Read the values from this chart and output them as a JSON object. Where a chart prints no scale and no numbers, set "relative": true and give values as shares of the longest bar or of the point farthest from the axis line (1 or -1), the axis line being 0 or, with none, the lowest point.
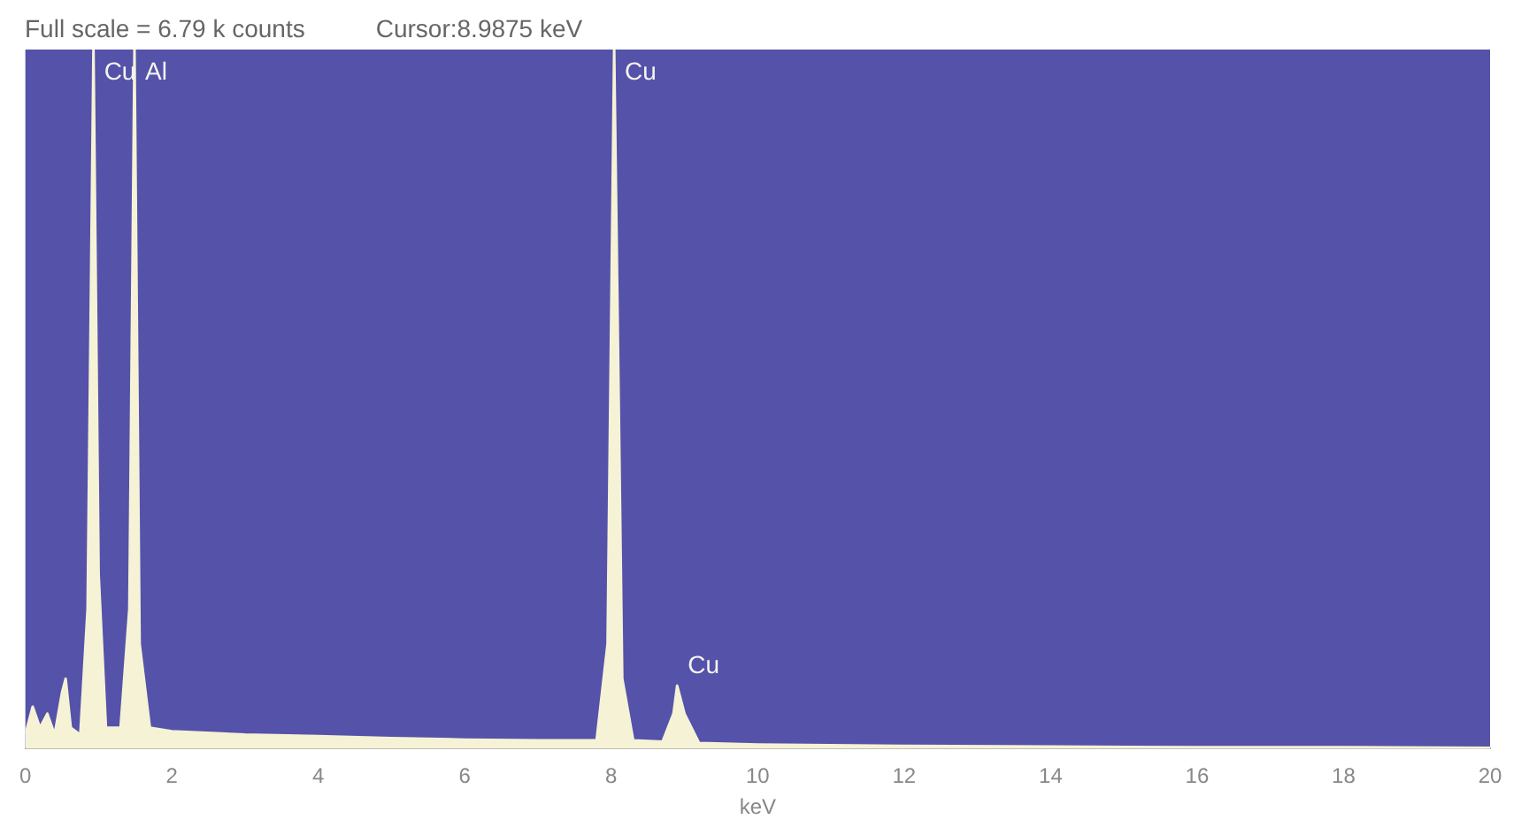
{
  "chart_data": {
    "type": "area",
    "title": "Full scale =  6.79 k counts",
    "subtitle": "Cursor:8.9875 keV",
    "xlabel": "keV",
    "relative": true,
    "grid": false,
    "legend": false,
    "marker": "none",
    "x": [
      0,
      0.1,
      0.2,
      0.3,
      0.4,
      0.5,
      0.55,
      0.62,
      0.75,
      0.85,
      0.93,
      1.0,
      1.1,
      1.3,
      1.42,
      1.49,
      1.56,
      1.7,
      2,
      3,
      4,
      5,
      6,
      7,
      7.8,
      7.95,
      8.04,
      8.15,
      8.3,
      8.7,
      8.85,
      8.9,
      9.0,
      9.2,
      10,
      12,
      14,
      16,
      18,
      20
    ],
    "series": [
      {
        "color": "#f6f2d6",
        "values": [
          0.02,
          0.06,
          0.03,
          0.05,
          0.02,
          0.08,
          0.1,
          0.03,
          0.02,
          0.2,
          1,
          0.25,
          0.03,
          0.03,
          0.2,
          1,
          0.15,
          0.03,
          0.025,
          0.02,
          0.018,
          0.015,
          0.013,
          0.012,
          0.012,
          0.15,
          1,
          0.1,
          0.012,
          0.01,
          0.05,
          0.09,
          0.05,
          0.008,
          0.006,
          0.004,
          0.003,
          0.002,
          0.002,
          0.001
        ]
      }
    ],
    "xlim": [
      0,
      20
    ],
    "xticks": [
      0,
      2,
      4,
      6,
      8,
      10,
      12,
      14,
      16,
      18,
      20
    ],
    "annotations": [
      {
        "text": "Cu",
        "x": 0.93,
        "y": 1
      },
      {
        "text": "Al",
        "x": 1.49,
        "y": 1
      },
      {
        "text": "Cu",
        "x": 8.04,
        "y": 1
      },
      {
        "text": "Cu",
        "x": 8.9,
        "y": 0.09
      }
    ]
  }
}
